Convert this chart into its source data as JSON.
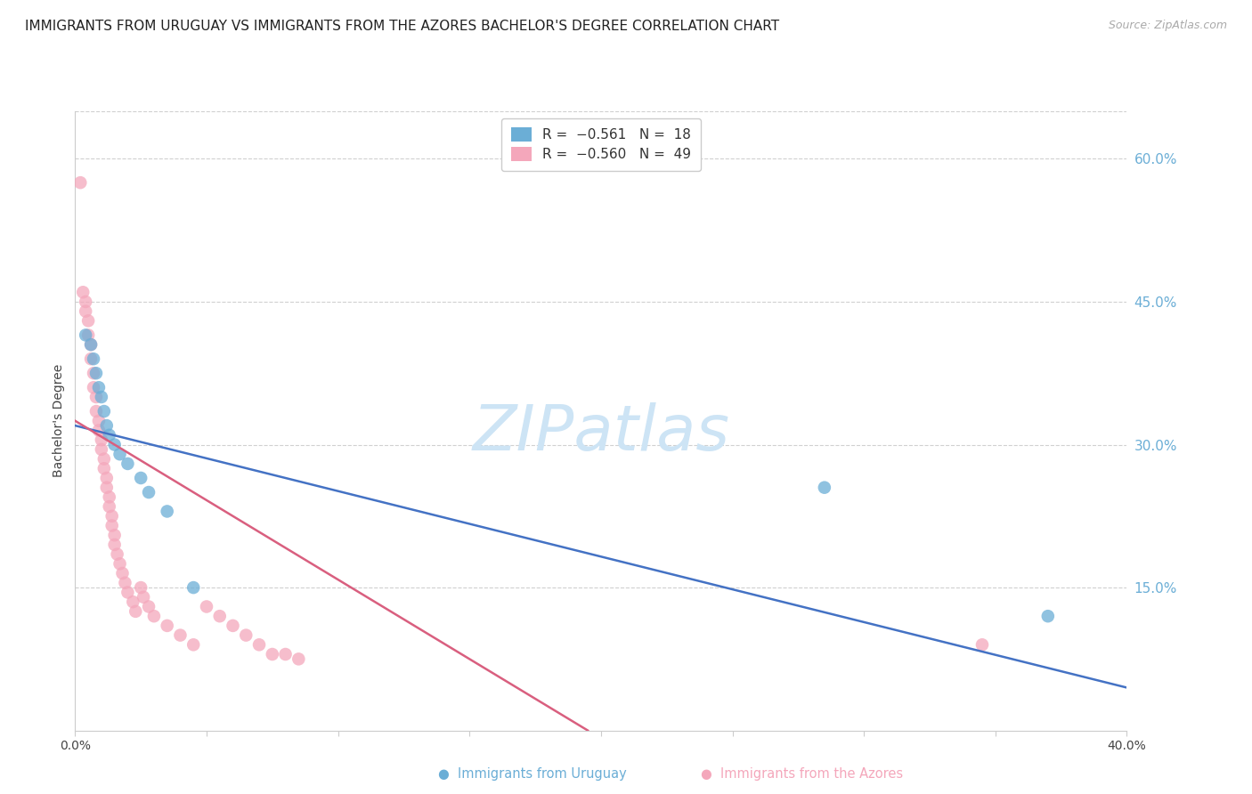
{
  "title": "IMMIGRANTS FROM URUGUAY VS IMMIGRANTS FROM THE AZORES BACHELOR'S DEGREE CORRELATION CHART",
  "source": "Source: ZipAtlas.com",
  "ylabel": "Bachelor's Degree",
  "xlim": [
    0.0,
    0.4
  ],
  "ylim": [
    0.0,
    0.65
  ],
  "uruguay_points": [
    [
      0.004,
      0.415
    ],
    [
      0.006,
      0.405
    ],
    [
      0.007,
      0.39
    ],
    [
      0.008,
      0.375
    ],
    [
      0.009,
      0.36
    ],
    [
      0.01,
      0.35
    ],
    [
      0.011,
      0.335
    ],
    [
      0.012,
      0.32
    ],
    [
      0.013,
      0.31
    ],
    [
      0.015,
      0.3
    ],
    [
      0.017,
      0.29
    ],
    [
      0.02,
      0.28
    ],
    [
      0.025,
      0.265
    ],
    [
      0.028,
      0.25
    ],
    [
      0.035,
      0.23
    ],
    [
      0.045,
      0.15
    ],
    [
      0.285,
      0.255
    ],
    [
      0.37,
      0.12
    ]
  ],
  "azores_points": [
    [
      0.002,
      0.575
    ],
    [
      0.003,
      0.46
    ],
    [
      0.004,
      0.45
    ],
    [
      0.004,
      0.44
    ],
    [
      0.005,
      0.43
    ],
    [
      0.005,
      0.415
    ],
    [
      0.006,
      0.405
    ],
    [
      0.006,
      0.39
    ],
    [
      0.007,
      0.375
    ],
    [
      0.007,
      0.36
    ],
    [
      0.008,
      0.35
    ],
    [
      0.008,
      0.335
    ],
    [
      0.009,
      0.325
    ],
    [
      0.009,
      0.315
    ],
    [
      0.01,
      0.305
    ],
    [
      0.01,
      0.295
    ],
    [
      0.011,
      0.285
    ],
    [
      0.011,
      0.275
    ],
    [
      0.012,
      0.265
    ],
    [
      0.012,
      0.255
    ],
    [
      0.013,
      0.245
    ],
    [
      0.013,
      0.235
    ],
    [
      0.014,
      0.225
    ],
    [
      0.014,
      0.215
    ],
    [
      0.015,
      0.205
    ],
    [
      0.015,
      0.195
    ],
    [
      0.016,
      0.185
    ],
    [
      0.017,
      0.175
    ],
    [
      0.018,
      0.165
    ],
    [
      0.019,
      0.155
    ],
    [
      0.02,
      0.145
    ],
    [
      0.022,
      0.135
    ],
    [
      0.023,
      0.125
    ],
    [
      0.025,
      0.15
    ],
    [
      0.026,
      0.14
    ],
    [
      0.028,
      0.13
    ],
    [
      0.03,
      0.12
    ],
    [
      0.035,
      0.11
    ],
    [
      0.04,
      0.1
    ],
    [
      0.045,
      0.09
    ],
    [
      0.05,
      0.13
    ],
    [
      0.055,
      0.12
    ],
    [
      0.06,
      0.11
    ],
    [
      0.065,
      0.1
    ],
    [
      0.07,
      0.09
    ],
    [
      0.075,
      0.08
    ],
    [
      0.08,
      0.08
    ],
    [
      0.085,
      0.075
    ],
    [
      0.345,
      0.09
    ]
  ],
  "uruguay_line_x": [
    0.0,
    0.4
  ],
  "uruguay_line_y": [
    0.32,
    0.045
  ],
  "azores_line_x": [
    0.0,
    0.195
  ],
  "azores_line_y": [
    0.325,
    0.0
  ],
  "blue_scatter_color": "#6baed6",
  "pink_scatter_color": "#f4a7bb",
  "blue_line_color": "#4472c4",
  "pink_line_color": "#d95f7f",
  "grid_color": "#d0d0d0",
  "right_tick_color": "#6baed6",
  "title_fontsize": 11,
  "source_fontsize": 9,
  "watermark": "ZIPatlas",
  "watermark_color": "#cde4f5",
  "watermark_fontsize": 52
}
